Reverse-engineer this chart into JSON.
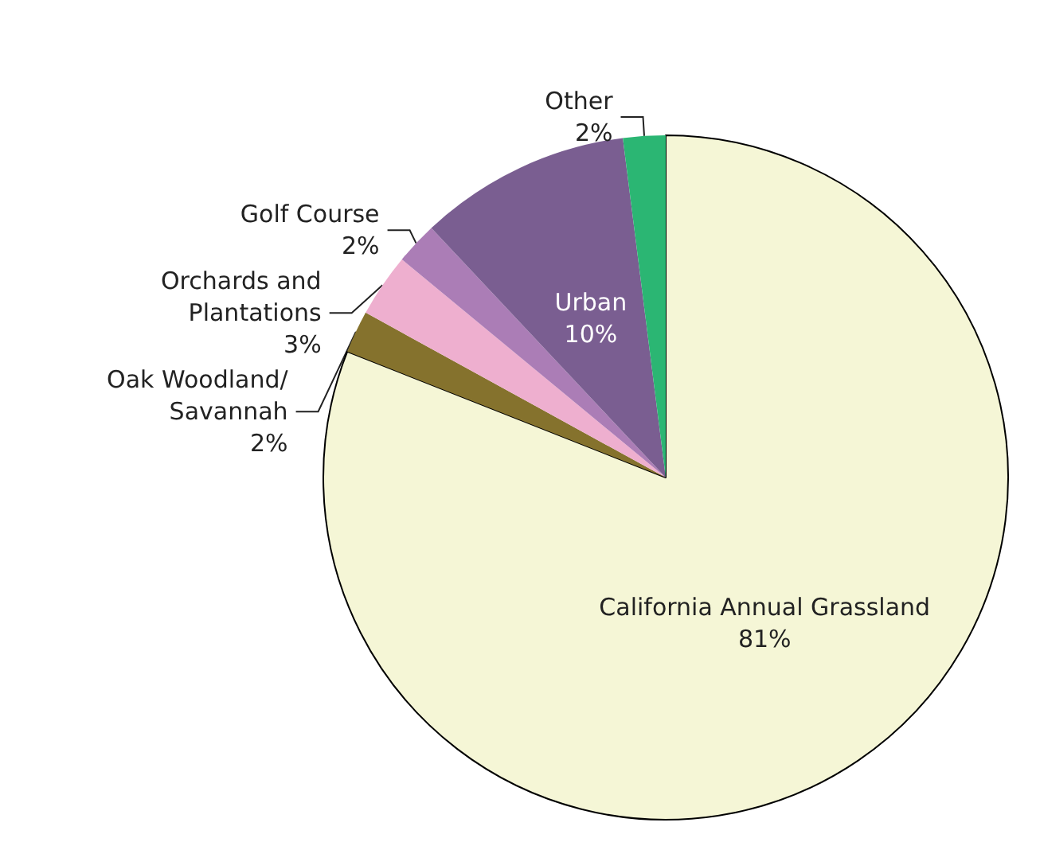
{
  "chart_data": {
    "type": "pie",
    "categories": [
      "California Annual Grassland",
      "Oak Woodland/\nSavannah",
      "Orchards and\nPlantations",
      "Golf Course",
      "Urban",
      "Other"
    ],
    "values": [
      81,
      2,
      3,
      2,
      10,
      2
    ],
    "colors": [
      "#f5f6d6",
      "#85722d",
      "#eeafcf",
      "#ab7db6",
      "#7a5e91",
      "#2bb673"
    ],
    "value_labels": [
      "81%",
      "2%",
      "3%",
      "2%",
      "10%",
      "2%"
    ],
    "legend": false
  }
}
